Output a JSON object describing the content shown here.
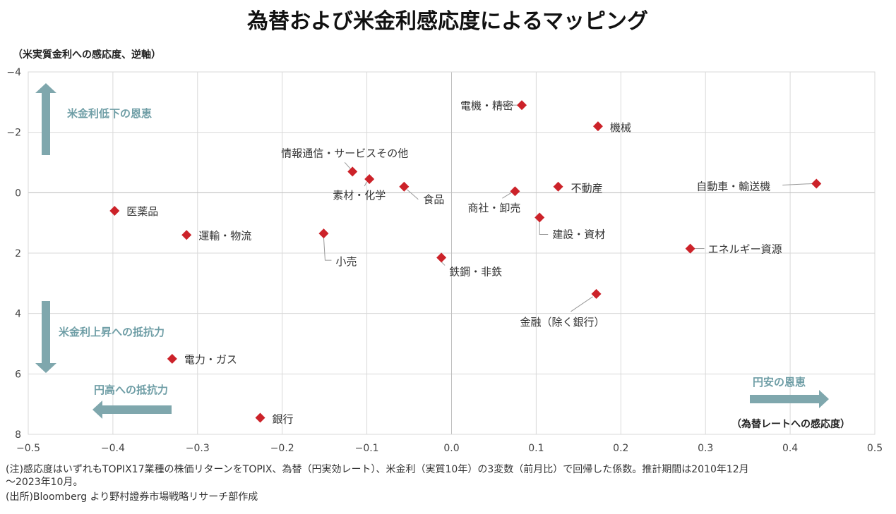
{
  "chart_data": {
    "type": "scatter",
    "title": "為替および米金利感応度によるマッピング",
    "xlabel": "（為替レートへの感応度）",
    "ylabel": "（米実質金利への感応度、逆軸）",
    "xlim": [
      -0.5,
      0.5
    ],
    "ylim": [
      -4,
      8
    ],
    "y_reversed": true,
    "grid": true,
    "x_ticks": [
      "−0.5",
      "−0.4",
      "−0.3",
      "−0.2",
      "−0.1",
      "0.0",
      "0.1",
      "0.2",
      "0.3",
      "0.4",
      "0.5"
    ],
    "y_ticks": [
      "−4",
      "−2",
      "0",
      "2",
      "4",
      "6",
      "8"
    ],
    "marker_color": "#cc2229",
    "points": [
      {
        "label": "電機・精密",
        "x": 0.083,
        "y": -2.9
      },
      {
        "label": "機械",
        "x": 0.173,
        "y": -2.2
      },
      {
        "label": "情報通信・サービスその他",
        "x": -0.117,
        "y": -0.7
      },
      {
        "label": "素材・化学",
        "x": -0.097,
        "y": -0.45
      },
      {
        "label": "食品",
        "x": -0.056,
        "y": -0.2
      },
      {
        "label": "商社・卸売",
        "x": 0.075,
        "y": -0.05
      },
      {
        "label": "不動産",
        "x": 0.126,
        "y": -0.2
      },
      {
        "label": "自動車・輸送機",
        "x": 0.431,
        "y": -0.3
      },
      {
        "label": "医薬品",
        "x": -0.398,
        "y": 0.6
      },
      {
        "label": "運輸・物流",
        "x": -0.313,
        "y": 1.4
      },
      {
        "label": "小売",
        "x": -0.151,
        "y": 1.35
      },
      {
        "label": "建設・資材",
        "x": 0.104,
        "y": 0.82
      },
      {
        "label": "鉄鋼・非鉄",
        "x": -0.012,
        "y": 2.15
      },
      {
        "label": "エネルギー資源",
        "x": 0.282,
        "y": 1.85
      },
      {
        "label": "金融（除く銀行）",
        "x": 0.171,
        "y": 3.35
      },
      {
        "label": "電力・ガス",
        "x": -0.33,
        "y": 5.5
      },
      {
        "label": "銀行",
        "x": -0.226,
        "y": 7.45
      }
    ],
    "annotations": {
      "rate_down": "米金利低下の恩恵",
      "rate_up": "米金利上昇への抵抗力",
      "yen_strong": "円高への抵抗力",
      "yen_weak": "円安の恩恵"
    }
  },
  "footnotes": {
    "note1": "(注)感応度はいずれもTOPIX17業種の株価リターンをTOPIX、為替（円実効レート）、米金利（実質10年）の3変数（前月比）で回帰した係数。推計期間は2010年12月",
    "note2": "～2023年10月。",
    "source": "(出所)Bloomberg より野村證券市場戦略リサーチ部作成"
  },
  "colors": {
    "marker": "#cc2229",
    "arrow": "#7fa7ad",
    "callout_text": "#6f9ea6",
    "grid": "#d9d9d9"
  }
}
